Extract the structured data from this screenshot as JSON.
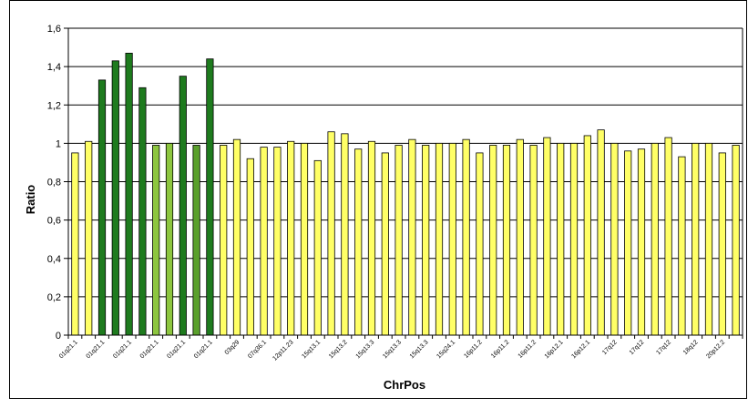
{
  "chart_data": {
    "type": "bar",
    "xlabel": "ChrPos",
    "ylabel": "Ratio",
    "ylim": [
      0,
      1.6
    ],
    "yticks": [
      "0",
      "0,2",
      "0,4",
      "0,6",
      "0,8",
      "1",
      "1,2",
      "1,4",
      "1,6"
    ],
    "grid": "horizontal",
    "legend": "none",
    "values": [
      0.95,
      1.01,
      1.33,
      1.43,
      1.47,
      1.29,
      0.99,
      1.0,
      1.35,
      0.99,
      1.44,
      0.99,
      1.02,
      0.92,
      0.98,
      0.98,
      1.01,
      1.0,
      0.91,
      1.06,
      1.05,
      0.97,
      1.01,
      0.95,
      0.99,
      1.02,
      0.99,
      1.0,
      1.0,
      1.02,
      0.95,
      0.99,
      0.99,
      1.02,
      0.99,
      1.03,
      1.0,
      1.0,
      1.04,
      1.07,
      1.0,
      0.96,
      0.97,
      1.0,
      1.03,
      0.93,
      1.0,
      1.0,
      0.95,
      0.99
    ],
    "bar_colors": [
      "#ffff66",
      "#ffff66",
      "#1e7b1e",
      "#1e7b1e",
      "#1e7b1e",
      "#1e7b1e",
      "#8dc63f",
      "#8dc63f",
      "#1e7b1e",
      "#5aa02c",
      "#1e7b1e",
      "#ffff66",
      "#ffff66",
      "#ffff66",
      "#ffff66",
      "#ffff66",
      "#ffff66",
      "#ffff66",
      "#ffff66",
      "#ffff66",
      "#ffff66",
      "#ffff66",
      "#ffff66",
      "#ffff66",
      "#ffff66",
      "#ffff66",
      "#ffff66",
      "#ffff66",
      "#ffff66",
      "#ffff66",
      "#ffff66",
      "#ffff66",
      "#ffff66",
      "#ffff66",
      "#ffff66",
      "#ffff66",
      "#ffff66",
      "#ffff66",
      "#ffff66",
      "#ffff66",
      "#ffff66",
      "#ffff66",
      "#ffff66",
      "#ffff66",
      "#ffff66",
      "#ffff66",
      "#ffff66",
      "#ffff66",
      "#ffff66",
      "#ffff66"
    ],
    "xtick_labels": [
      "01q21.1",
      "01q21.1",
      "01q21.1",
      "01q21.1",
      "01q21.1",
      "01q21.1",
      "03q29",
      "07q36.1",
      "12p11.23",
      "15q13.1",
      "15q13.2",
      "15q13.3",
      "15q13.3",
      "15q13.3",
      "15q24.1",
      "16p11.2",
      "16p11.2",
      "16p11.2",
      "16p12.1",
      "16p12.1",
      "17q12",
      "17q12",
      "17q12",
      "18q12",
      "20p12.2"
    ],
    "bar_edge_color": "#000000"
  }
}
